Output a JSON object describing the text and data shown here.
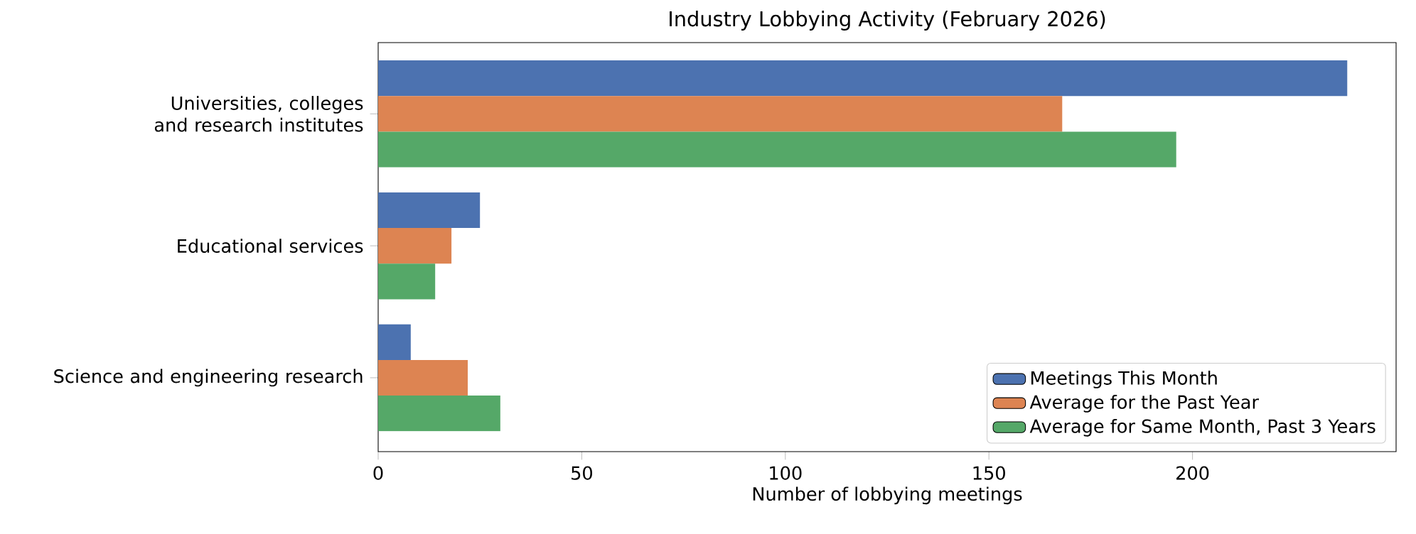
{
  "chart_data": {
    "type": "bar",
    "orientation": "horizontal",
    "title": "Industry Lobbying Activity (February 2026)",
    "xlabel": "Number of lobbying meetings",
    "categories": [
      "Universities, colleges and research institutes",
      "Educational services",
      "Science and engineering research"
    ],
    "series": [
      {
        "name": "Meetings This Month",
        "color": "#4c72b0",
        "values": [
          238,
          25,
          8
        ]
      },
      {
        "name": "Average for the Past Year",
        "color": "#dd8452",
        "values": [
          168,
          18,
          22
        ]
      },
      {
        "name": "Average for Same Month, Past 3 Years",
        "color": "#55a868",
        "values": [
          196,
          14,
          30
        ]
      }
    ],
    "xlim": [
      0,
      250
    ],
    "xticks": [
      0,
      50,
      100,
      150,
      200
    ],
    "legend": "bottom right",
    "grid": false
  }
}
